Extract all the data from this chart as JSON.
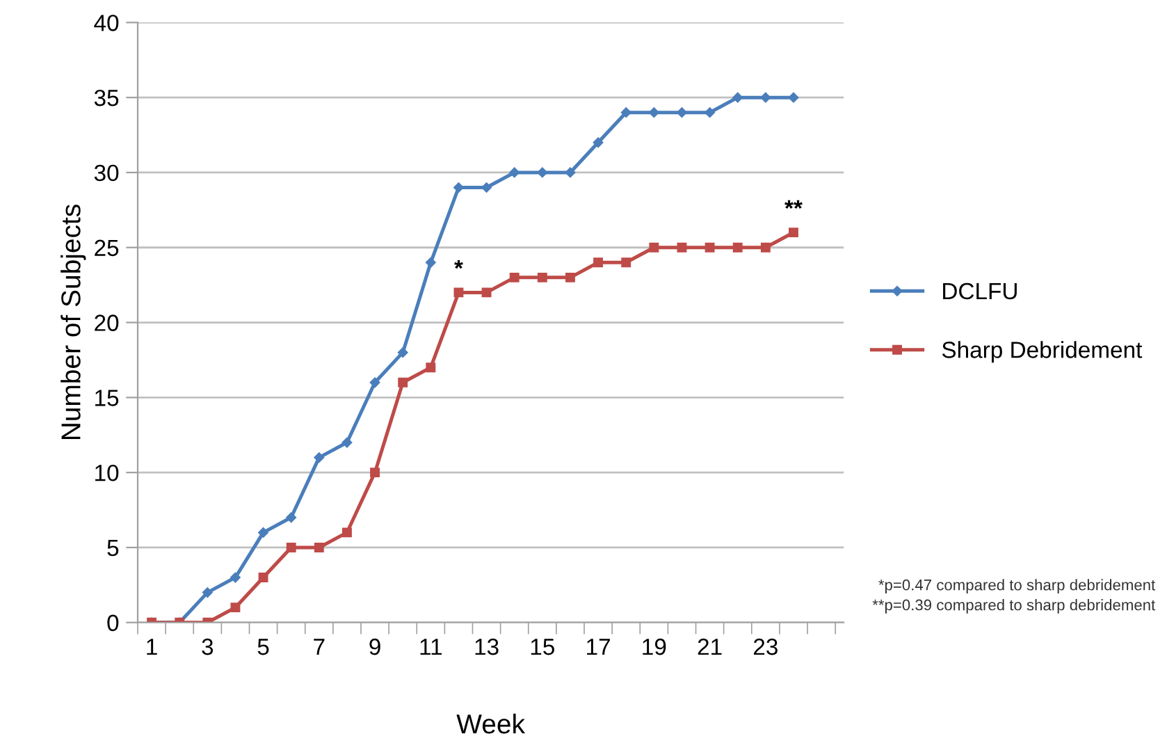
{
  "chart_data": {
    "type": "line",
    "xlabel": "Week",
    "ylabel": "Number of Subjects",
    "categories": [
      "1",
      null,
      "3",
      null,
      "5",
      null,
      "7",
      null,
      "9",
      null,
      "11",
      null,
      "13",
      null,
      "15",
      null,
      "17",
      null,
      "19",
      null,
      "21",
      null,
      "23",
      null
    ],
    "series": [
      {
        "name": "DCLFU",
        "color": "#4a7ebb",
        "marker": "diamond",
        "values": [
          0,
          0,
          2,
          3,
          6,
          7,
          11,
          12,
          16,
          18,
          24,
          29,
          29,
          30,
          30,
          30,
          32,
          34,
          34,
          34,
          34,
          35,
          35,
          35
        ]
      },
      {
        "name": "Sharp Debridement",
        "color": "#be4b48",
        "marker": "square",
        "values": [
          0,
          0,
          0,
          1,
          3,
          5,
          5,
          6,
          10,
          16,
          17,
          22,
          22,
          23,
          23,
          23,
          24,
          24,
          25,
          25,
          25,
          25,
          25,
          26
        ]
      }
    ],
    "ylim": [
      0,
      40
    ],
    "yticks": [
      0,
      5,
      10,
      15,
      20,
      25,
      30,
      35,
      40
    ],
    "grid": "y",
    "legend": "right",
    "line_style": "solid",
    "annotations": [
      {
        "text": "*",
        "y": 22
      },
      {
        "text": "**",
        "y": 26
      },
      "*p=0.47 compared to sharp debridement\n**p=0.39 compared to sharp debridement"
    ]
  }
}
